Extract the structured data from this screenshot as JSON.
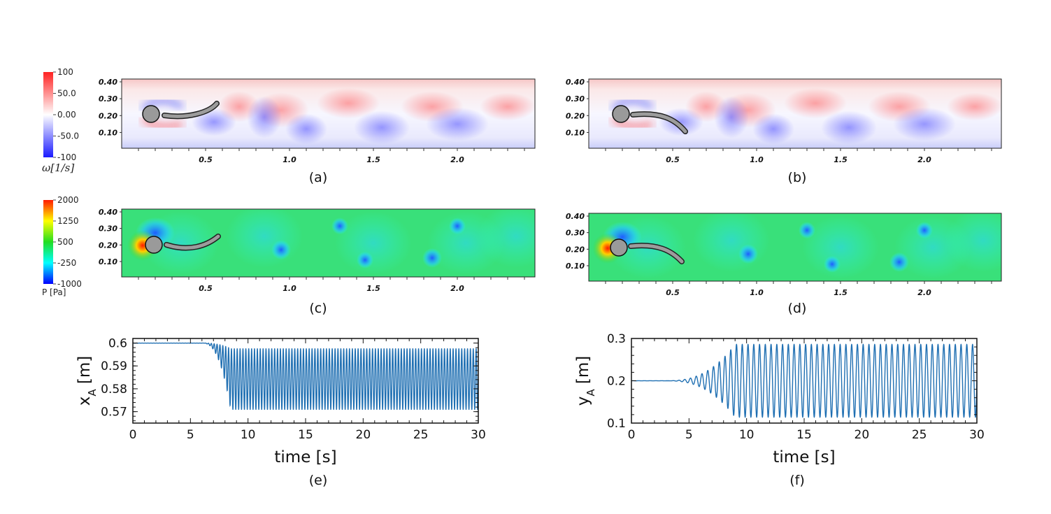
{
  "panels": {
    "a": {
      "caption": "(a)",
      "field": "vorticity"
    },
    "b": {
      "caption": "(b)",
      "field": "vorticity"
    },
    "c": {
      "caption": "(c)",
      "field": "pressure"
    },
    "d": {
      "caption": "(d)",
      "field": "pressure"
    },
    "e": {
      "caption": "(e)"
    },
    "f": {
      "caption": "(f)"
    }
  },
  "field_axes": {
    "x_ticks": [
      "0.5",
      "1.0",
      "1.5",
      "2.0"
    ],
    "y_ticks": [
      "0.40",
      "0.30",
      "0.20",
      "0.10"
    ]
  },
  "colorbars": {
    "vorticity": {
      "label": "ω[1/s]",
      "ticks": [
        "100",
        "50.0",
        "0.00",
        "-50.0",
        "-100"
      ],
      "colors": [
        "#ff2222",
        "#ffffff",
        "#1a1aff"
      ]
    },
    "pressure": {
      "label": "P [Pa]",
      "ticks": [
        "2000",
        "1250",
        "500",
        "-250",
        "-1000"
      ],
      "colors": [
        "#ff1a00",
        "#ffff00",
        "#22dd22",
        "#00ffff",
        "#0000ff"
      ]
    }
  },
  "chart_data": [
    {
      "type": "line",
      "panel": "e",
      "xlabel": "time [s]",
      "ylabel": "x_A [m]",
      "xlim": [
        0,
        30
      ],
      "ylim": [
        0.565,
        0.602
      ],
      "x_ticks": [
        0,
        5,
        10,
        15,
        20,
        25,
        30
      ],
      "y_ticks": [
        0.57,
        0.58,
        0.59,
        0.6
      ],
      "x_tick_labels": [
        "0",
        "5",
        "10",
        "15",
        "20",
        "25",
        "30"
      ],
      "y_tick_labels": [
        "0.57",
        "0.58",
        "0.59",
        "0.6"
      ],
      "series": [
        {
          "description": "oscillating signal",
          "baseline": 0.6,
          "onset_s": 6,
          "saturation_s": 8.5,
          "steady_min": 0.571,
          "steady_max": 0.5975,
          "freq_hz": 4.0,
          "color": "#1f6fb2"
        }
      ]
    },
    {
      "type": "line",
      "panel": "f",
      "xlabel": "time [s]",
      "ylabel": "y_A [m]",
      "xlim": [
        0,
        30
      ],
      "ylim": [
        0.1,
        0.3
      ],
      "x_ticks": [
        0,
        5,
        10,
        15,
        20,
        25,
        30
      ],
      "y_ticks": [
        0.1,
        0.2,
        0.3
      ],
      "x_tick_labels": [
        "0",
        "5",
        "10",
        "15",
        "20",
        "25",
        "30"
      ],
      "y_tick_labels": [
        "0.1",
        "0.2",
        "0.3"
      ],
      "series": [
        {
          "description": "oscillating signal",
          "baseline": 0.2,
          "onset_s": 3,
          "saturation_s": 9,
          "steady_min": 0.115,
          "steady_max": 0.287,
          "freq_hz": 2.0,
          "color": "#1f6fb2"
        }
      ]
    }
  ]
}
